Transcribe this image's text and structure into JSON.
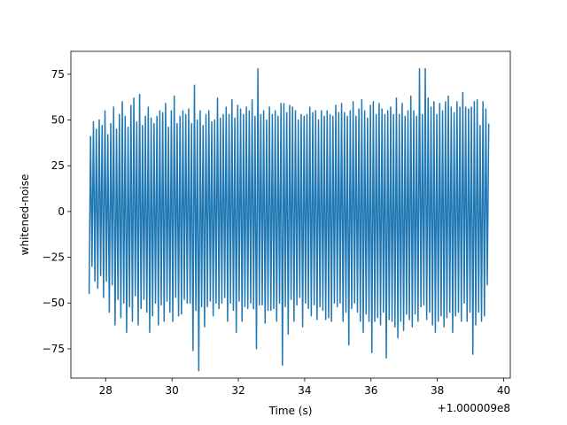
{
  "chart_data": {
    "type": "line",
    "title": "",
    "xlabel": "Time (s)",
    "ylabel": "whitened-noise",
    "x_offset_label": "+1.000009e8",
    "xlim": [
      26.95,
      40.2
    ],
    "ylim": [
      -91,
      87.5
    ],
    "x_ticks": [
      28,
      30,
      32,
      34,
      36,
      38,
      40
    ],
    "y_ticks": [
      -75,
      -50,
      -25,
      0,
      25,
      50,
      75
    ],
    "x_tick_labels": [
      "28",
      "30",
      "32",
      "34",
      "36",
      "38",
      "40"
    ],
    "y_tick_labels": [
      "−75",
      "−50",
      "−25",
      "0",
      "25",
      "50",
      "75"
    ],
    "grid": false,
    "series": [
      {
        "x_start": 27.5,
        "x_end": 39.55,
        "color": "#1f77b4",
        "typical_range": [
          -45,
          50
        ],
        "values": [
          -45,
          41,
          -30,
          49,
          -38,
          45,
          -42,
          50,
          -35,
          47,
          -47,
          55,
          -38,
          42,
          -55,
          48,
          -40,
          57,
          -62,
          45,
          -48,
          53,
          -58,
          60,
          -50,
          52,
          -66,
          46,
          -52,
          58,
          -60,
          62,
          -46,
          49,
          -62,
          64,
          -53,
          47,
          -48,
          52,
          -55,
          57,
          -66,
          51,
          -57,
          48,
          -50,
          52,
          -62,
          55,
          -51,
          54,
          -60,
          59,
          -49,
          46,
          -55,
          55,
          -60,
          63,
          -47,
          48,
          -57,
          52,
          -56,
          55,
          -48,
          53,
          -50,
          56,
          -50,
          48,
          -76,
          69,
          -54,
          50,
          -87,
          55,
          -52,
          47,
          -63,
          53,
          -52,
          55,
          -49,
          49,
          -57,
          50,
          -50,
          62,
          -53,
          51,
          -50,
          53,
          -47,
          57,
          -60,
          53,
          -50,
          61,
          -54,
          51,
          -66,
          58,
          -49,
          56,
          -60,
          53,
          -52,
          57,
          -53,
          55,
          -50,
          61,
          -53,
          52,
          -75,
          78,
          -51,
          53,
          -51,
          55,
          -61,
          50,
          -54,
          57,
          -54,
          53,
          -53,
          55,
          -60,
          52,
          -50,
          59,
          -84,
          59,
          -52,
          54,
          -67,
          58,
          -48,
          57,
          -60,
          55,
          -51,
          50,
          -47,
          53,
          -63,
          52,
          -50,
          53,
          -53,
          57,
          -57,
          54,
          -51,
          55,
          -59,
          50,
          -52,
          55,
          -54,
          52,
          -59,
          55,
          -58,
          53,
          -60,
          52,
          -50,
          58,
          -52,
          54,
          -50,
          59,
          -60,
          54,
          -55,
          52,
          -73,
          55,
          -53,
          60,
          -50,
          52,
          -55,
          56,
          -60,
          61,
          -66,
          55,
          -56,
          51,
          -60,
          58,
          -77,
          60,
          -60,
          53,
          -58,
          59,
          -62,
          56,
          -55,
          53,
          -80,
          55,
          -59,
          57,
          -60,
          53,
          -63,
          62,
          -69,
          53,
          -60,
          59,
          -65,
          52,
          -56,
          55,
          -59,
          63,
          -63,
          55,
          -56,
          52,
          -60,
          78,
          -52,
          53,
          -51,
          78,
          -59,
          62,
          -55,
          57,
          -62,
          60,
          -66,
          53,
          -60,
          59,
          -57,
          55,
          -63,
          60,
          -58,
          63,
          -55,
          57,
          -66,
          54,
          -57,
          60,
          -55,
          57,
          -60,
          65,
          -50,
          57,
          -60,
          56,
          -55,
          57,
          -78,
          60,
          -62,
          61,
          -55,
          47,
          -60,
          60,
          -57,
          56,
          -40,
          48
        ]
      }
    ]
  }
}
